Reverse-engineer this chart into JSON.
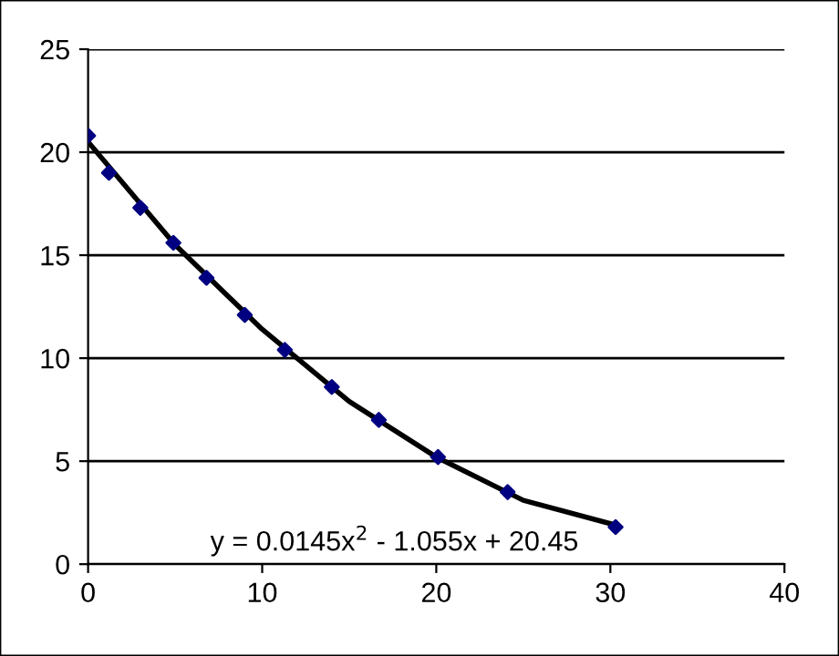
{
  "chart_data": {
    "type": "scatter",
    "grid": "y",
    "legend": false,
    "xlim": [
      0,
      40
    ],
    "ylim": [
      0,
      25
    ],
    "xticks": [
      0,
      10,
      20,
      30,
      40
    ],
    "yticks": [
      0,
      5,
      10,
      15,
      20,
      25
    ],
    "series": [
      {
        "color": "#000080",
        "marker": "diamond",
        "x": [
          0,
          1.2,
          3.0,
          4.9,
          6.8,
          9.0,
          11.3,
          14.0,
          16.7,
          20.1,
          24.1,
          30.3
        ],
        "values": [
          20.8,
          19.0,
          17.3,
          15.6,
          13.9,
          12.1,
          10.4,
          8.6,
          7.0,
          5.2,
          3.5,
          1.8
        ]
      },
      {
        "type": "line",
        "color": "#000000",
        "marker": "none",
        "x": [
          0,
          5,
          10,
          15,
          20,
          25,
          30.3
        ],
        "values": [
          20.5,
          15.5,
          11.4,
          7.9,
          5.2,
          3.1,
          1.9
        ]
      }
    ],
    "annotations": [
      "y = 0.0145x$^{2}$ - 1.055x + 20.45"
    ]
  }
}
